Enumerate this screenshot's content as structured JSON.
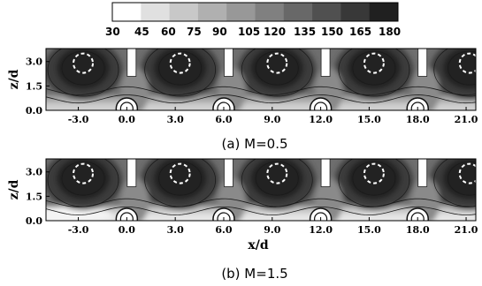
{
  "chart_data": {
    "type": "heatmap",
    "colorbar": {
      "tick_labels": [
        "30",
        "45",
        "60",
        "75",
        "90",
        "105",
        "120",
        "135",
        "150",
        "165",
        "180"
      ],
      "colors": [
        "#ffffff",
        "#e0e0e0",
        "#c8c8c8",
        "#b0b0b0",
        "#989898",
        "#808080",
        "#686868",
        "#505050",
        "#383838",
        "#202020"
      ]
    },
    "panels": [
      {
        "caption": "(a) M=0.5",
        "ylabel": "z/d",
        "xlabel": "",
        "xlim": [
          -5.0,
          21.6
        ],
        "ylim": [
          0.0,
          3.8
        ],
        "x_ticks": [
          "-3.0",
          "0.0",
          "3.0",
          "6.0",
          "9.0",
          "12.0",
          "15.0",
          "18.0",
          "21.0"
        ],
        "y_ticks": [
          "0.0",
          "1.5",
          "3.0"
        ],
        "vortex_centers_x": [
          -2.7,
          3.3,
          9.3,
          15.3,
          21.2
        ],
        "vortex_center_z": 2.9,
        "slot_x": [
          0.3,
          6.3,
          12.3,
          18.3
        ],
        "hole_x": [
          0.0,
          6.0,
          12.0,
          18.0
        ]
      },
      {
        "caption": "(b) M=1.5",
        "ylabel": "z/d",
        "xlabel": "x/d",
        "xlim": [
          -5.0,
          21.6
        ],
        "ylim": [
          0.0,
          3.8
        ],
        "x_ticks": [
          "-3.0",
          "0.0",
          "3.0",
          "6.0",
          "9.0",
          "12.0",
          "15.0",
          "18.0",
          "21.0"
        ],
        "y_ticks": [
          "0.0",
          "1.5",
          "3.0"
        ],
        "vortex_centers_x": [
          -2.7,
          3.3,
          9.3,
          15.3,
          21.2
        ],
        "vortex_center_z": 2.9,
        "slot_x": [
          0.3,
          6.3,
          12.3,
          18.3
        ],
        "hole_x": [
          0.0,
          6.0,
          12.0,
          18.0
        ]
      }
    ]
  }
}
